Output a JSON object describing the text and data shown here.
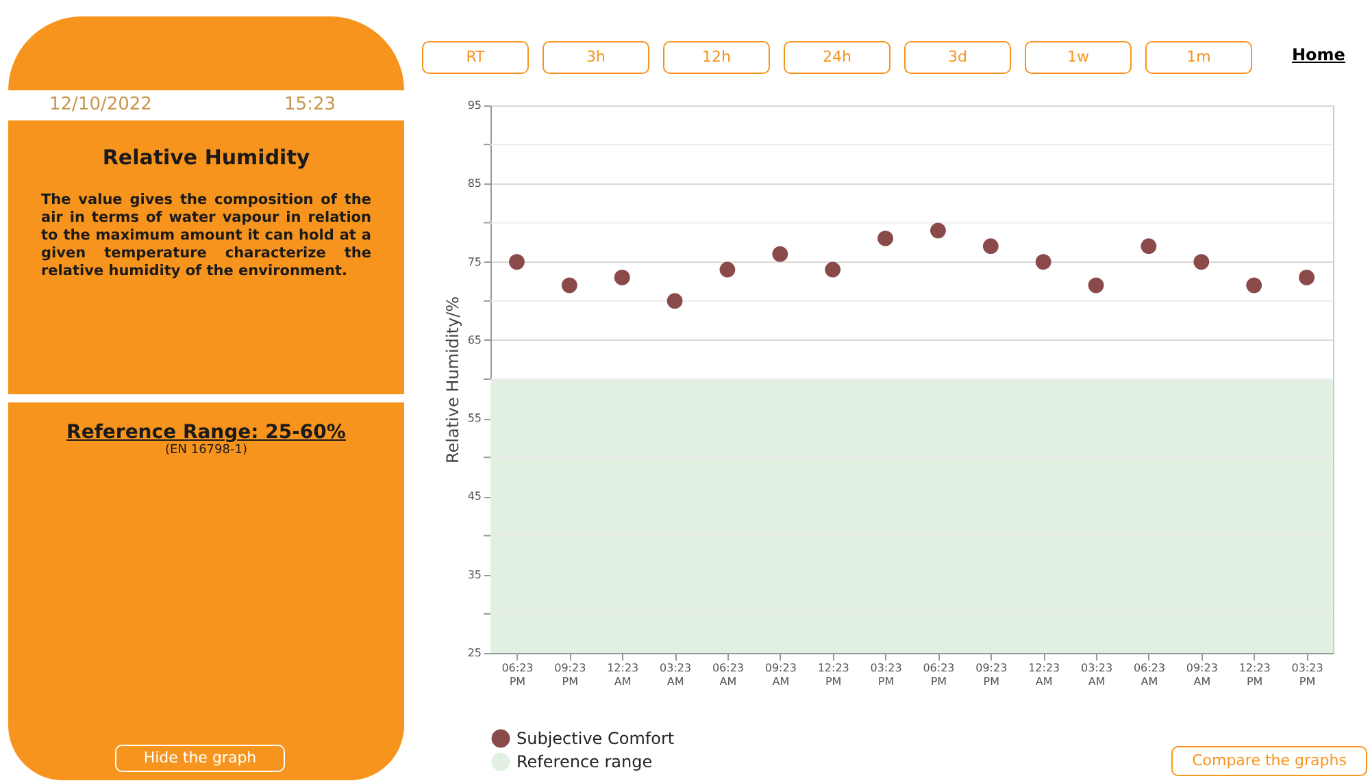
{
  "chart_data": {
    "type": "scatter",
    "title": "Relative Humidity",
    "ylabel": "Relative Humidity/%",
    "categories": [
      "06:23 PM",
      "09:23 PM",
      "12:23 AM",
      "03:23 AM",
      "06:23 AM",
      "09:23 AM",
      "12:23 PM",
      "03:23 PM",
      "06:23 PM",
      "09:23 PM",
      "12:23 AM",
      "03:23 AM",
      "06:23 AM",
      "09:23 AM",
      "12:23 PM",
      "03:23 PM"
    ],
    "series": [
      {
        "name": "Subjective Comfort",
        "color": "#8b4a4a",
        "values": [
          75,
          72,
          73,
          70,
          74,
          76,
          74,
          78,
          79,
          77,
          75,
          72,
          77,
          75,
          72,
          73
        ]
      }
    ],
    "ylim": [
      25,
      95
    ],
    "yticks": [
      25,
      {
        "value": 30,
        "label": null
      },
      35,
      {
        "value": 40,
        "label": null
      },
      45,
      {
        "value": 50,
        "label": null
      },
      55,
      {
        "value": 60,
        "label": null
      },
      65,
      {
        "value": 70,
        "label": null
      },
      75,
      {
        "value": 80,
        "label": null
      },
      85,
      {
        "value": 90,
        "label": null
      },
      95
    ],
    "grid": "y",
    "legend": "bottom",
    "marker": "circle",
    "bands": [
      {
        "axis": "y",
        "from": 25,
        "to": 60,
        "label": "Reference range",
        "color": "#e2f0e2"
      }
    ],
    "annotations": [
      "12/10/2022",
      "15:23",
      "The value gives the composition of the air in terms of water vapour in relation to the maximum amount it can hold at a given temperature characterize the relative humidity of the environment.",
      "Reference Range: 25-60%",
      "(EN 16798-1)",
      "RT",
      "3h",
      "12h",
      "24h",
      "3d",
      "1w",
      "1m",
      "Home",
      "Hide the graph",
      "Compare the graphs"
    ]
  }
}
